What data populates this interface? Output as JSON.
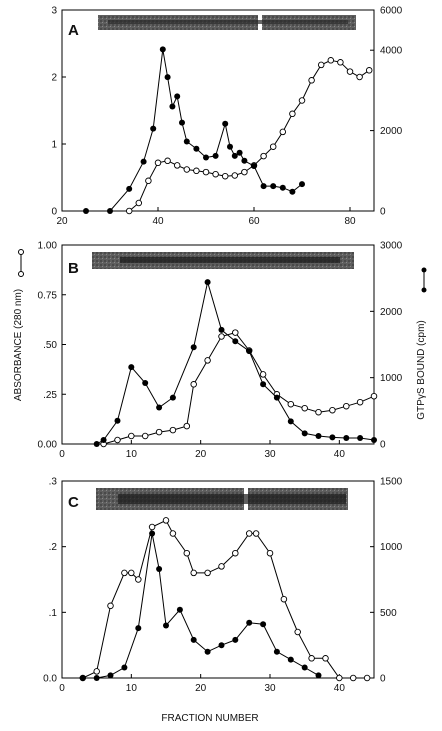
{
  "figure": {
    "left_axis_title": "ABSORBANCE (280 nm)",
    "right_axis_title": "GTPγS BOUND (cpm)",
    "x_axis_title": "FRACTION NUMBER"
  },
  "chart_data": [
    {
      "type": "line",
      "panel_label": "A",
      "xlabel": "",
      "ylabel": "",
      "xlim": [
        20,
        85
      ],
      "ylim": [
        0,
        3
      ],
      "y2lim": [
        0,
        5000
      ],
      "x_ticks": [
        20,
        40,
        60,
        80
      ],
      "y_ticks": [
        0,
        1,
        2,
        3
      ],
      "y2_ticks": [
        0,
        2000,
        4000,
        6000
      ],
      "series": [
        {
          "axis": "left",
          "marker": "open-circle",
          "x": [
            34,
            36,
            38,
            40,
            42,
            44,
            46,
            48,
            50,
            52,
            54,
            56,
            58,
            60,
            62,
            64,
            66,
            68,
            70,
            72,
            74,
            76,
            78,
            80,
            82,
            84
          ],
          "y": [
            0.0,
            0.12,
            0.45,
            0.72,
            0.75,
            0.68,
            0.62,
            0.6,
            0.58,
            0.55,
            0.52,
            0.53,
            0.58,
            0.68,
            0.82,
            0.96,
            1.18,
            1.45,
            1.65,
            1.95,
            2.18,
            2.25,
            2.22,
            2.08,
            2.0,
            2.1
          ]
        },
        {
          "axis": "right",
          "marker": "filled-circle",
          "x": [
            25,
            30,
            34,
            37,
            39,
            41,
            42,
            43,
            44,
            45,
            46,
            48,
            50,
            52,
            54,
            55,
            56,
            57,
            58,
            60,
            62,
            64,
            66,
            68,
            70
          ],
          "y": [
            0,
            0,
            550,
            1230,
            2050,
            4020,
            3330,
            2600,
            2850,
            2200,
            1730,
            1550,
            1330,
            1370,
            2170,
            1600,
            1370,
            1450,
            1250,
            1120,
            620,
            620,
            580,
            480,
            670
          ]
        }
      ]
    },
    {
      "type": "line",
      "panel_label": "B",
      "xlabel": "",
      "ylabel": "",
      "xlim": [
        0,
        45
      ],
      "ylim": [
        0,
        1.0
      ],
      "y2lim": [
        0,
        3000
      ],
      "x_ticks": [
        0,
        10,
        20,
        30,
        40
      ],
      "y_ticks": [
        0.0,
        0.25,
        0.5,
        0.75,
        1.0
      ],
      "y_tick_labels": [
        "0.00",
        ".25",
        ".50",
        "0.75",
        "1.00"
      ],
      "y2_ticks": [
        0,
        1000,
        2000,
        3000
      ],
      "series": [
        {
          "axis": "left",
          "marker": "open-circle",
          "x": [
            6,
            8,
            10,
            12,
            14,
            16,
            18,
            19,
            21,
            23,
            25,
            27,
            29,
            31,
            33,
            35,
            37,
            39,
            41,
            43,
            45
          ],
          "y": [
            0.0,
            0.02,
            0.04,
            0.04,
            0.06,
            0.07,
            0.09,
            0.3,
            0.42,
            0.54,
            0.56,
            0.47,
            0.35,
            0.25,
            0.2,
            0.18,
            0.16,
            0.17,
            0.19,
            0.21,
            0.24
          ]
        },
        {
          "axis": "right",
          "marker": "filled-circle",
          "x": [
            5,
            6,
            8,
            10,
            12,
            14,
            16,
            19,
            21,
            23,
            25,
            27,
            29,
            31,
            33,
            35,
            37,
            39,
            41,
            43,
            45
          ],
          "y": [
            0,
            60,
            350,
            1160,
            920,
            550,
            700,
            1460,
            2440,
            1720,
            1550,
            1400,
            900,
            700,
            340,
            160,
            120,
            100,
            90,
            90,
            60
          ]
        }
      ]
    },
    {
      "type": "line",
      "panel_label": "C",
      "xlabel": "",
      "ylabel": "",
      "xlim": [
        0,
        45
      ],
      "ylim": [
        0,
        0.3
      ],
      "y2lim": [
        0,
        1500
      ],
      "x_ticks": [
        0,
        10,
        20,
        30,
        40
      ],
      "y_ticks": [
        0.0,
        0.1,
        0.2,
        0.3
      ],
      "y_tick_labels": [
        "0.0",
        ".1",
        ".2",
        ".3"
      ],
      "y2_ticks": [
        0,
        500,
        1000,
        1500
      ],
      "series": [
        {
          "axis": "left",
          "marker": "open-circle",
          "x": [
            3,
            5,
            7,
            9,
            10,
            11,
            13,
            15,
            16,
            18,
            19,
            21,
            23,
            25,
            27,
            28,
            30,
            32,
            34,
            36,
            38,
            40,
            42,
            44
          ],
          "y": [
            0.0,
            0.01,
            0.11,
            0.16,
            0.16,
            0.15,
            0.23,
            0.24,
            0.22,
            0.19,
            0.16,
            0.16,
            0.17,
            0.19,
            0.22,
            0.22,
            0.19,
            0.12,
            0.07,
            0.03,
            0.03,
            0.0,
            0.0,
            0.0
          ]
        },
        {
          "axis": "right",
          "marker": "filled-circle",
          "x": [
            3,
            5,
            7,
            9,
            11,
            13,
            14,
            15,
            17,
            19,
            21,
            23,
            25,
            27,
            29,
            31,
            33,
            35,
            37
          ],
          "y": [
            0,
            0,
            20,
            80,
            380,
            1100,
            830,
            400,
            520,
            290,
            200,
            250,
            290,
            420,
            410,
            200,
            140,
            80,
            20
          ]
        }
      ]
    }
  ]
}
